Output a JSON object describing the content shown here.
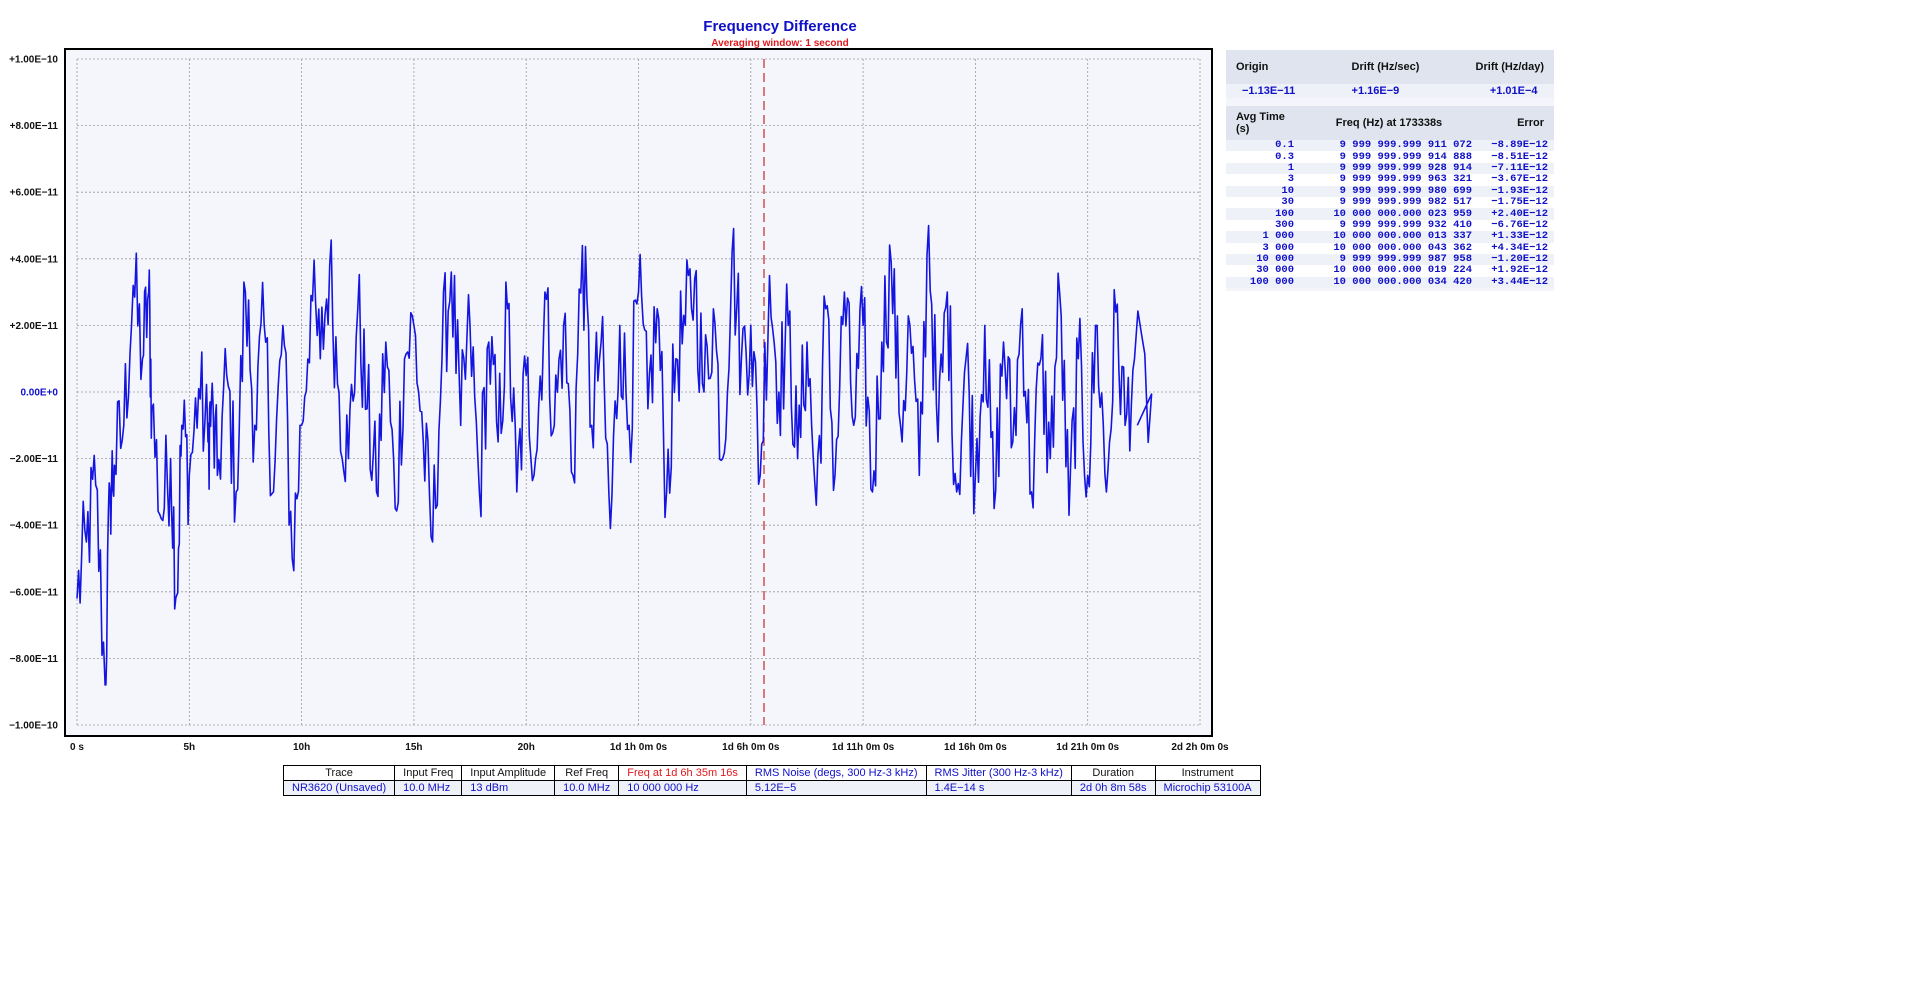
{
  "chart_data": {
    "type": "line",
    "title": "Frequency Difference",
    "subtitle": "Averaging window: 1 second",
    "xlabel": "",
    "ylabel": "",
    "x_unit": "seconds",
    "xlim": [
      0,
      172800
    ],
    "ylim": [
      -1e-10,
      1e-10
    ],
    "grid": true,
    "y_tick_values": [
      1e-10,
      8e-11,
      6e-11,
      4e-11,
      2e-11,
      0,
      -2e-11,
      -4e-11,
      -6e-11,
      -8e-11,
      -1e-10
    ],
    "y_tick_labels": [
      "+1.00E−10",
      "+8.00E−11",
      "+6.00E−11",
      "+4.00E−11",
      "+2.00E−11",
      "0.00E+0",
      "−2.00E−11",
      "−4.00E−11",
      "−6.00E−11",
      "−8.00E−11",
      "−1.00E−10"
    ],
    "x_tick_values": [
      0,
      18000,
      36000,
      54000,
      72000,
      90000,
      108000,
      126000,
      144000,
      162000,
      180000
    ],
    "x_tick_labels": [
      "0 s",
      "5h",
      "10h",
      "15h",
      "20h",
      "1d 1h 0m 0s",
      "1d 6h 0m 0s",
      "1d 11h 0m 0s",
      "1d 16h 0m 0s",
      "1d 21h 0m 0s",
      "2d 2h 0m 0s"
    ],
    "marker_x": 110116,
    "series": [
      {
        "color": "#1515e0",
        "x": [
          0,
          1500,
          3000,
          4500,
          5300,
          6000,
          7500,
          9000,
          10500,
          11500,
          12000,
          13500,
          15000,
          16000,
          16800,
          18000,
          19500,
          21000,
          21500,
          22500,
          24000,
          25500,
          27000,
          28500,
          30000,
          31500,
          33000,
          34500,
          36000,
          37500,
          39000,
          40500,
          42000,
          43500,
          45000,
          46500,
          48000,
          49500,
          51000,
          52500,
          54000,
          55500,
          57000,
          58500,
          60000,
          61500,
          63000,
          64500,
          66000,
          67500,
          69000,
          70500,
          72000,
          73500,
          75000,
          76500,
          78000,
          79500,
          81000,
          82500,
          84000,
          85500,
          87000,
          88500,
          90000,
          91500,
          93000,
          94500,
          96000,
          97500,
          99000,
          100500,
          102000,
          103500,
          105000,
          106500,
          108000,
          109500,
          111000,
          112500,
          114000,
          115500,
          117000,
          118500,
          120000,
          121500,
          123000,
          124500,
          126000,
          127500,
          129000,
          130500,
          132000,
          133500,
          135000,
          136500,
          138000,
          139500,
          141000,
          142500,
          144000,
          145500,
          147000,
          148500,
          150000,
          151500,
          153000,
          154500,
          156000,
          157500,
          159000,
          160500,
          162000,
          163500,
          165000,
          166500,
          168000,
          169500,
          172800
        ],
        "y": [
          -6.2e-11,
          -4.5e-11,
          -2.8e-11,
          -8.8e-11,
          -3e-11,
          -2.2e-11,
          -1e-11,
          3.2e-11,
          1e-11,
          3e-11,
          -5e-12,
          -3.8e-11,
          -2e-11,
          -6.1e-11,
          -1e-11,
          -2.5e-11,
          1e-12,
          -1.5e-11,
          -5e-12,
          -2.5e-11,
          5e-12,
          -3e-11,
          3e-11,
          -1e-11,
          2e-11,
          -3e-11,
          2e-11,
          -5e-11,
          -1e-11,
          2.9e-11,
          1e-11,
          3.8e-11,
          0.0,
          -2e-11,
          2.5e-11,
          -5e-12,
          -3e-11,
          1.5e-11,
          -3.5e-11,
          1e-11,
          2e-11,
          -1.5e-11,
          -4.5e-11,
          1e-11,
          3.6e-11,
          -1e-11,
          2e-11,
          -3e-11,
          1.5e-11,
          -1.5e-11,
          2.5e-11,
          -3e-11,
          5e-12,
          -2e-11,
          3e-11,
          -1e-11,
          2e-11,
          -2.5e-11,
          4.4e-11,
          -1e-11,
          1.5e-11,
          -4.1e-11,
          2e-11,
          -1e-11,
          3e-11,
          -5e-12,
          2.5e-11,
          -3e-11,
          1e-11,
          2e-11,
          3.4e-11,
          0.0,
          2.5e-11,
          -2e-11,
          4.2e-11,
          1e-11,
          2e-11,
          -2.5e-11,
          3.5e-11,
          0.0,
          2e-11,
          -2e-11,
          1.5e-11,
          -3.4e-11,
          2.5e-11,
          -2.5e-11,
          3e-11,
          -1e-11,
          2e-11,
          -3e-11,
          1.5e-11,
          3.9e-11,
          -1e-11,
          2e-11,
          -2.5e-11,
          5e-11,
          -1.5e-11,
          3e-11,
          -3e-11,
          1e-11,
          -2.5e-11,
          2e-11,
          -3.5e-11,
          1.5e-11,
          -1.5e-11,
          2.5e-11,
          -3e-11,
          1e-11,
          -2e-11,
          3e-11,
          -3.7e-11,
          1e-11,
          -2.5e-11,
          2e-11,
          -3e-11,
          2.4e-11,
          -1e-11,
          1e-11,
          -1e-11
        ]
      }
    ]
  },
  "drift_table": {
    "headers": [
      "Origin",
      "Drift (Hz/sec)",
      "Drift (Hz/day)"
    ],
    "values": [
      "−1.13E−11",
      "+1.16E−9",
      "+1.01E−4"
    ]
  },
  "avg_table": {
    "headers": [
      "Avg Time (s)",
      "Freq (Hz) at 173338s",
      "Error"
    ],
    "rows": [
      [
        "0.1",
        " 9 999 999.999 911 072",
        "−8.89E−12"
      ],
      [
        "0.3",
        " 9 999 999.999 914 888",
        "−8.51E−12"
      ],
      [
        "1",
        " 9 999 999.999 928 914",
        "−7.11E−12"
      ],
      [
        "3",
        " 9 999 999.999 963 321",
        "−3.67E−12"
      ],
      [
        "10",
        " 9 999 999.999 980 699",
        "−1.93E−12"
      ],
      [
        "30",
        " 9 999 999.999 982 517",
        "−1.75E−12"
      ],
      [
        "100",
        "10 000 000.000 023 959",
        "+2.40E−12"
      ],
      [
        "300",
        " 9 999 999.999 932 410",
        "−6.76E−12"
      ],
      [
        "1 000",
        "10 000 000.000 013 337",
        "+1.33E−12"
      ],
      [
        "3 000",
        "10 000 000.000 043 362",
        "+4.34E−12"
      ],
      [
        "10 000",
        " 9 999 999.999 987 958",
        "−1.20E−12"
      ],
      [
        "30 000",
        "10 000 000.000 019 224",
        "+1.92E−12"
      ],
      [
        "100 000",
        "10 000 000.000 034 420",
        "+3.44E−12"
      ]
    ]
  },
  "bottom_table": {
    "headers": [
      "Trace",
      "Input Freq",
      "Input Amplitude",
      "Ref Freq",
      "Freq at 1d 6h 35m 16s",
      "RMS Noise (degs, 300 Hz-3 kHz)",
      "RMS Jitter (300 Hz-3 kHz)",
      "Duration",
      "Instrument"
    ],
    "values": [
      "NR3620 (Unsaved)",
      "10.0 MHz",
      "13 dBm",
      "10.0 MHz",
      "10 000 000 Hz",
      "5.12E−5",
      "1.4E−14 s",
      "2d 0h 8m 58s",
      "Microchip 53100A"
    ]
  },
  "colors": {
    "trace": "#1515e0",
    "title": "#1010c8",
    "subtitle": "#e0181c",
    "marker": "#c0282c",
    "plot_bg": "#f5f6fb",
    "grid": "#9a9a9a"
  }
}
